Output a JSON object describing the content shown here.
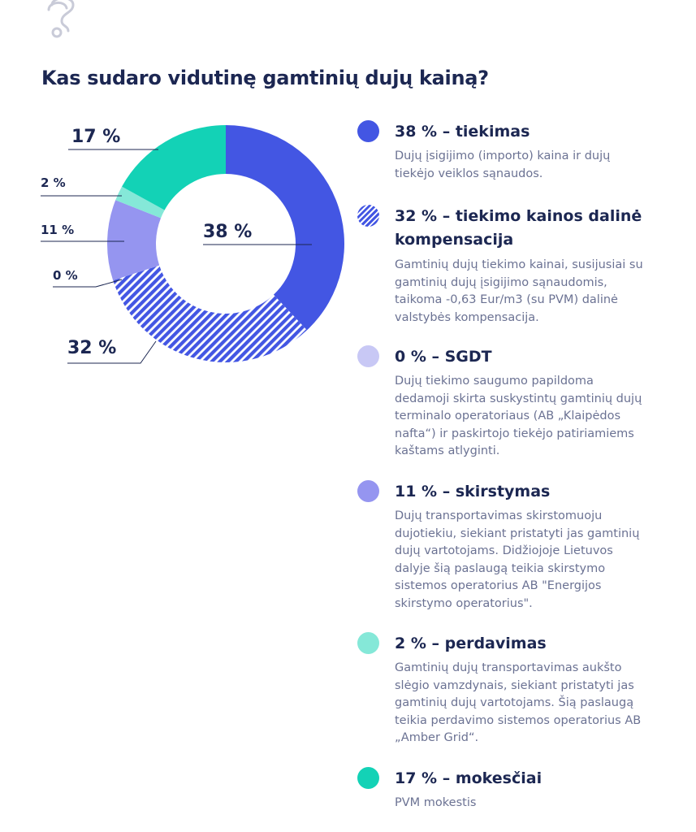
{
  "title": "Kas sudaro vidutinę gamtinių dujų kainą?",
  "decoration_icon": "question-mark-icon",
  "colors": {
    "tiekimas": "#4356e3",
    "kompensacija": "#4356e3",
    "sgdt": "#c8c8f5",
    "skirstymas": "#9595f0",
    "perdavimas": "#85e8d8",
    "mokesciai": "#13d2b6",
    "title": "#1c2752",
    "description": "#6b7293"
  },
  "chart_data": {
    "type": "pie",
    "title": "Kas sudaro vidutinę gamtinių dujų kainą?",
    "slices": [
      {
        "key": "tiekimas",
        "value": 38,
        "label": "38 %",
        "pattern": "solid"
      },
      {
        "key": "kompensacija",
        "value": 32,
        "label": "32 %",
        "pattern": "hatched"
      },
      {
        "key": "sgdt",
        "value": 0,
        "label": "0 %",
        "pattern": "solid"
      },
      {
        "key": "skirstymas",
        "value": 11,
        "label": "11 %",
        "pattern": "solid"
      },
      {
        "key": "perdavimas",
        "value": 2,
        "label": "2 %",
        "pattern": "solid"
      },
      {
        "key": "mokesciai",
        "value": 17,
        "label": "17 %",
        "pattern": "solid"
      }
    ],
    "donut": true,
    "legend_position": "right"
  },
  "legend": [
    {
      "key": "tiekimas",
      "title": "38 % – tiekimas",
      "description": "Dujų įsigijimo (importo) kaina ir dujų\ntiekėjo veiklos sąnaudos."
    },
    {
      "key": "kompensacija",
      "title": "32 % – tiekimo kainos dalinė\nkompensacija",
      "description": "Gamtinių dujų tiekimo kainai, susijusiai su\ngamtinių dujų įsigijimo sąnaudomis,\ntaikoma -0,63 Eur/m3 (su PVM) dalinė\nvalstybės kompensacija."
    },
    {
      "key": "sgdt",
      "title": "0 % – SGDT",
      "description": "Dujų tiekimo saugumo papildoma\ndedamoji skirta suskystintų gamtinių dujų\nterminalo operatoriaus (AB „Klaipėdos\nnafta“) ir paskirtojo tiekėjo patiriamiems\nkaštams atlyginti."
    },
    {
      "key": "skirstymas",
      "title": "11 % – skirstymas",
      "description": "Dujų transportavimas skirstomuoju\ndujotiekiu, siekiant pristatyti jas gamtinių\ndujų vartotojams. Didžiojoje Lietuvos\ndalyje šią paslaugą teikia skirstymo\nsistemos operatorius AB \"Energijos\nskirstymo operatorius\"."
    },
    {
      "key": "perdavimas",
      "title": "2 % – perdavimas",
      "description": "Gamtinių dujų transportavimas aukšto\nslėgio vamzdynais, siekiant pristatyti jas\ngamtinių dujų vartotojams. Šią paslaugą\nteikia perdavimo sistemos operatorius AB\n„Amber Grid“."
    },
    {
      "key": "mokesciai",
      "title": "17 % – mokesčiai",
      "description": "PVM mokestis"
    }
  ]
}
